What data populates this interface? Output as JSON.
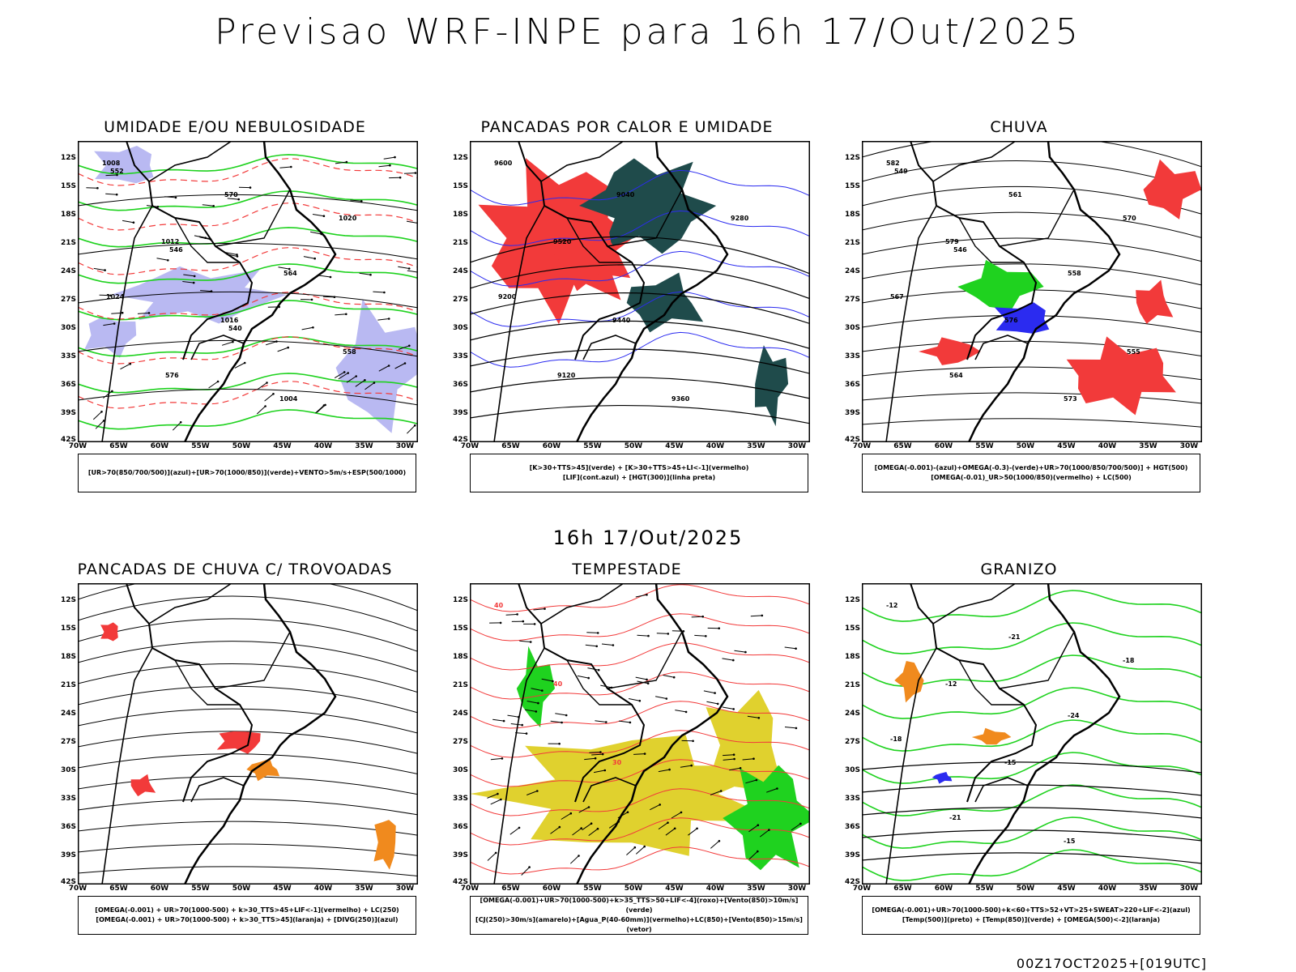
{
  "title": "Previsao WRF-INPE  para 16h 17/Out/2025",
  "mid_time": "16h 17/Out/2025",
  "footer": "00Z17OCT2025+[019UTC]",
  "lat_labels": [
    "12S",
    "15S",
    "18S",
    "21S",
    "24S",
    "27S",
    "30S",
    "33S",
    "36S",
    "39S",
    "42S"
  ],
  "lon_labels": [
    "70W",
    "65W",
    "60W",
    "55W",
    "50W",
    "45W",
    "40W",
    "35W",
    "30W"
  ],
  "colors": {
    "red": "#f23a3a",
    "blue": "#2b2bf0",
    "green": "#1fd21f",
    "lightblue": "#b9b9f2",
    "darkteal": "#1f4b4b",
    "yellow": "#e0d12e",
    "orange": "#f08a1e",
    "purple": "#8a2be2"
  },
  "panels": [
    {
      "title": "UMIDADE E/OU NEBULOSIDADE",
      "legend": [
        "[UR>70(850/700/500)](azul)+[UR>70(1000/850)](verde)+VENTO>5m/s+ESP(500/1000)"
      ],
      "contour_labels": [
        "1008",
        "1012",
        "1016",
        "1004",
        "1020",
        "1024",
        "576",
        "570",
        "564",
        "558",
        "552",
        "546",
        "540"
      ]
    },
    {
      "title": "PANCADAS POR CALOR E UMIDADE",
      "legend": [
        "[K>30+TTS>45](verde) + [K>30+TTS>45+LI<-1](vermelho)",
        "[LIF](cont.azul) + [HGT(300)](linha preta)"
      ],
      "contour_labels": [
        "9600",
        "9520",
        "9440",
        "9360",
        "9280",
        "9200",
        "9120",
        "9040"
      ]
    },
    {
      "title": "CHUVA",
      "legend": [
        "[OMEGA(-0.001)-(azul)+OMEGA(-0.3)-(verde)+UR>70(1000/850/700/500)] + HGT(500)",
        "[OMEGA(-0.01)_UR>50(1000/850)(vermelho) + LC(500)"
      ],
      "contour_labels": [
        "582",
        "579",
        "576",
        "573",
        "570",
        "567",
        "564",
        "561",
        "558",
        "555",
        "549",
        "546"
      ]
    },
    {
      "title": "PANCADAS DE CHUVA C/ TROVOADAS",
      "legend": [
        "[OMEGA(-0.001) + UR>70(1000-500) + k>30_TTS>45+LIF<-1](vermelho) + LC(250)",
        "[OMEGA(-0.001) + UR>70(1000-500) + k>30_TTS>45](laranja) + [DIVG(250)](azul)"
      ],
      "contour_labels": []
    },
    {
      "title": "TEMPESTADE",
      "legend": [
        "[OMEGA(-0.001)+UR>70(1000-500)+k>35_TTS>50+LIF<-4](roxo)+[Vento(850)>10m/s](verde)",
        "[CJ(250)>30m/s](amarelo)+[Agua_P(40-60mm)](vermelho)+LC(850)+[Vento(850)>15m/s](vetor)"
      ],
      "contour_labels": [
        "40",
        "40",
        "30"
      ]
    },
    {
      "title": "GRANIZO",
      "legend": [
        "[OMEGA(-0.001)+UR>70(1000-500)+k<60+TTS>52+VT>25+SWEAT>220+LIF<-2](azul)",
        "[Temp(500)](preto) + [Temp(850)](verde) + [OMEGA(500)<-2](laranja)"
      ],
      "contour_labels": [
        "-12",
        "-12",
        "-15",
        "-15",
        "-18",
        "-18",
        "-21",
        "-21",
        "-24"
      ]
    }
  ]
}
